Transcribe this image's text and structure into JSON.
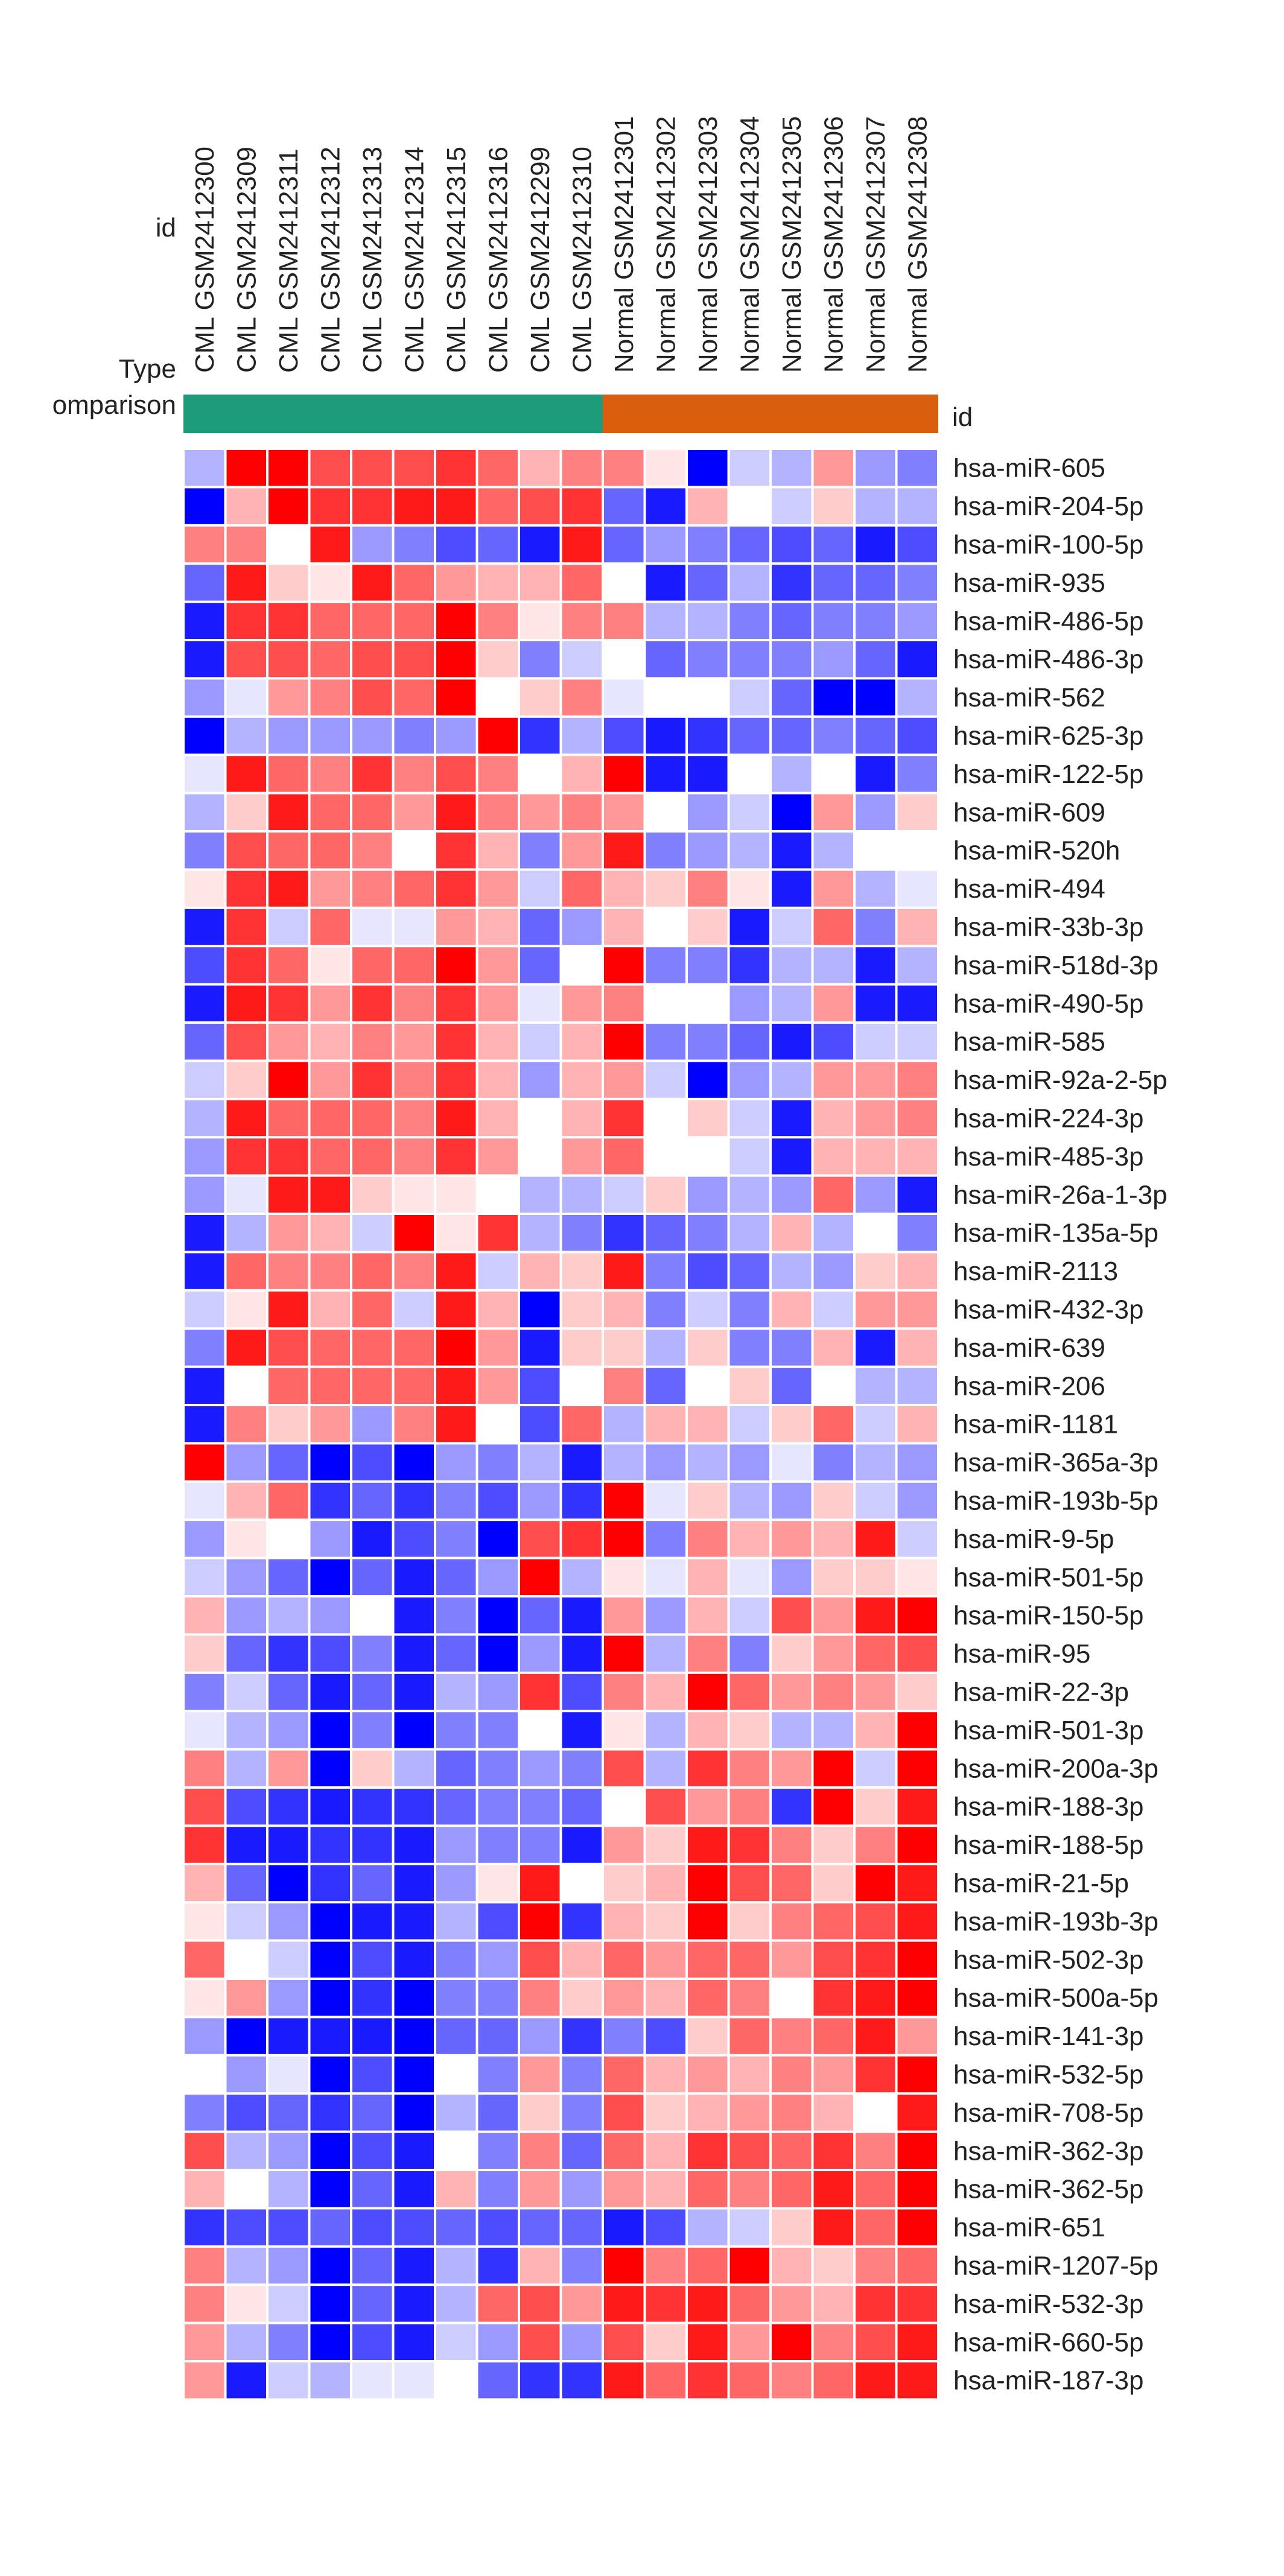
{
  "chart_data": {
    "type": "heatmap",
    "header_labels": {
      "id_row": "id",
      "type_row": "Type",
      "comparison_row": "omparison",
      "row_id_header": "id"
    },
    "columns": [
      {
        "id": "GSM2412300",
        "type": "CML"
      },
      {
        "id": "GSM2412309",
        "type": "CML"
      },
      {
        "id": "GSM2412311",
        "type": "CML"
      },
      {
        "id": "GSM2412312",
        "type": "CML"
      },
      {
        "id": "GSM2412313",
        "type": "CML"
      },
      {
        "id": "GSM2412314",
        "type": "CML"
      },
      {
        "id": "GSM2412315",
        "type": "CML"
      },
      {
        "id": "GSM2412316",
        "type": "CML"
      },
      {
        "id": "GSM2412299",
        "type": "CML"
      },
      {
        "id": "GSM2412310",
        "type": "CML"
      },
      {
        "id": "GSM2412301",
        "type": "Normal"
      },
      {
        "id": "GSM2412302",
        "type": "Normal"
      },
      {
        "id": "GSM2412303",
        "type": "Normal"
      },
      {
        "id": "GSM2412304",
        "type": "Normal"
      },
      {
        "id": "GSM2412305",
        "type": "Normal"
      },
      {
        "id": "GSM2412306",
        "type": "Normal"
      },
      {
        "id": "GSM2412307",
        "type": "Normal"
      },
      {
        "id": "GSM2412308",
        "type": "Normal"
      }
    ],
    "groups": [
      {
        "name": "CML",
        "color": "#1e9c79",
        "count": 10
      },
      {
        "name": "Normal",
        "color": "#d95f0e",
        "count": 8
      }
    ],
    "color_scale": {
      "low": "#0000ff",
      "mid": "#ffffff",
      "high": "#ff0000",
      "range": [
        -1,
        1
      ]
    },
    "rows": [
      {
        "id": "hsa-miR-605",
        "values": [
          -0.3,
          1.0,
          1.0,
          0.7,
          0.7,
          0.7,
          0.8,
          0.6,
          0.3,
          0.5,
          0.5,
          0.1,
          -1.0,
          -0.2,
          -0.3,
          0.4,
          -0.4,
          -0.5
        ]
      },
      {
        "id": "hsa-miR-204-5p",
        "values": [
          -1.0,
          0.3,
          1.0,
          0.8,
          0.8,
          0.9,
          0.9,
          0.6,
          0.7,
          0.8,
          -0.6,
          -0.9,
          0.3,
          0.0,
          -0.2,
          0.2,
          -0.3,
          -0.3
        ]
      },
      {
        "id": "hsa-miR-100-5p",
        "values": [
          0.5,
          0.5,
          0.0,
          0.9,
          -0.4,
          -0.5,
          -0.7,
          -0.6,
          -0.9,
          0.9,
          -0.6,
          -0.4,
          -0.5,
          -0.6,
          -0.7,
          -0.6,
          -0.9,
          -0.7
        ]
      },
      {
        "id": "hsa-miR-935",
        "values": [
          -0.6,
          0.9,
          0.2,
          0.1,
          0.9,
          0.6,
          0.4,
          0.3,
          0.3,
          0.6,
          0.0,
          -0.9,
          -0.6,
          -0.3,
          -0.8,
          -0.6,
          -0.6,
          -0.5
        ]
      },
      {
        "id": "hsa-miR-486-5p",
        "values": [
          -0.9,
          0.8,
          0.8,
          0.6,
          0.6,
          0.6,
          1.0,
          0.5,
          0.1,
          0.5,
          0.5,
          -0.3,
          -0.3,
          -0.5,
          -0.6,
          -0.5,
          -0.5,
          -0.4
        ]
      },
      {
        "id": "hsa-miR-486-3p",
        "values": [
          -0.9,
          0.7,
          0.7,
          0.6,
          0.7,
          0.7,
          1.0,
          0.2,
          -0.5,
          -0.2,
          0.0,
          -0.6,
          -0.5,
          -0.5,
          -0.5,
          -0.4,
          -0.6,
          -0.9
        ]
      },
      {
        "id": "hsa-miR-562",
        "values": [
          -0.4,
          -0.1,
          0.4,
          0.5,
          0.7,
          0.6,
          1.0,
          0.0,
          0.2,
          0.5,
          -0.1,
          0.0,
          0.0,
          -0.2,
          -0.6,
          -1.0,
          -1.0,
          -0.3
        ]
      },
      {
        "id": "hsa-miR-625-3p",
        "values": [
          -1.0,
          -0.3,
          -0.4,
          -0.4,
          -0.4,
          -0.5,
          -0.4,
          1.0,
          -0.8,
          -0.3,
          -0.7,
          -0.9,
          -0.8,
          -0.6,
          -0.6,
          -0.5,
          -0.6,
          -0.7
        ]
      },
      {
        "id": "hsa-miR-122-5p",
        "values": [
          -0.1,
          0.9,
          0.6,
          0.5,
          0.8,
          0.5,
          0.7,
          0.5,
          0.0,
          0.3,
          1.0,
          -0.9,
          -0.9,
          0.0,
          -0.3,
          0.0,
          -0.9,
          -0.5
        ]
      },
      {
        "id": "hsa-miR-609",
        "values": [
          -0.3,
          0.2,
          0.9,
          0.6,
          0.6,
          0.4,
          0.9,
          0.5,
          0.4,
          0.5,
          0.4,
          0.0,
          -0.4,
          -0.2,
          -1.0,
          0.4,
          -0.4,
          0.2
        ]
      },
      {
        "id": "hsa-miR-520h",
        "values": [
          -0.5,
          0.7,
          0.6,
          0.6,
          0.5,
          0.0,
          0.8,
          0.3,
          -0.5,
          0.4,
          0.9,
          -0.5,
          -0.4,
          -0.3,
          -0.9,
          -0.3,
          0.0,
          0.0
        ]
      },
      {
        "id": "hsa-miR-494",
        "values": [
          0.1,
          0.8,
          0.9,
          0.4,
          0.5,
          0.6,
          0.8,
          0.4,
          -0.2,
          0.6,
          0.3,
          0.2,
          0.5,
          0.1,
          -0.9,
          0.4,
          -0.3,
          -0.1
        ]
      },
      {
        "id": "hsa-miR-33b-3p",
        "values": [
          -0.9,
          0.8,
          -0.2,
          0.6,
          -0.1,
          -0.1,
          0.4,
          0.3,
          -0.6,
          -0.4,
          0.3,
          0.0,
          0.2,
          -0.9,
          -0.2,
          0.6,
          -0.5,
          0.3
        ]
      },
      {
        "id": "hsa-miR-518d-3p",
        "values": [
          -0.7,
          0.8,
          0.6,
          0.1,
          0.6,
          0.6,
          1.0,
          0.4,
          -0.6,
          0.0,
          1.0,
          -0.5,
          -0.5,
          -0.8,
          -0.3,
          -0.3,
          -0.9,
          -0.3
        ]
      },
      {
        "id": "hsa-miR-490-5p",
        "values": [
          -0.9,
          0.9,
          0.8,
          0.4,
          0.8,
          0.5,
          0.8,
          0.4,
          -0.1,
          0.4,
          0.5,
          0.0,
          0.0,
          -0.4,
          -0.3,
          0.4,
          -0.9,
          -0.9
        ]
      },
      {
        "id": "hsa-miR-585",
        "values": [
          -0.6,
          0.7,
          0.4,
          0.3,
          0.5,
          0.4,
          0.8,
          0.3,
          -0.2,
          0.3,
          1.0,
          -0.5,
          -0.5,
          -0.6,
          -0.9,
          -0.7,
          -0.2,
          -0.2
        ]
      },
      {
        "id": "hsa-miR-92a-2-5p",
        "values": [
          -0.2,
          0.2,
          1.0,
          0.4,
          0.8,
          0.5,
          0.8,
          0.3,
          -0.4,
          0.3,
          0.4,
          -0.2,
          -1.0,
          -0.4,
          -0.3,
          0.4,
          0.4,
          0.5
        ]
      },
      {
        "id": "hsa-miR-224-3p",
        "values": [
          -0.3,
          0.9,
          0.6,
          0.6,
          0.6,
          0.5,
          0.9,
          0.3,
          0.0,
          0.3,
          0.8,
          0.0,
          0.2,
          -0.2,
          -0.9,
          0.3,
          0.4,
          0.5
        ]
      },
      {
        "id": "hsa-miR-485-3p",
        "values": [
          -0.4,
          0.8,
          0.8,
          0.6,
          0.6,
          0.5,
          0.8,
          0.4,
          0.0,
          0.4,
          0.6,
          0.0,
          0.0,
          -0.2,
          -0.9,
          0.3,
          0.3,
          0.3
        ]
      },
      {
        "id": "hsa-miR-26a-1-3p",
        "values": [
          -0.4,
          -0.1,
          0.9,
          0.9,
          0.2,
          0.1,
          0.1,
          0.0,
          -0.3,
          -0.3,
          -0.2,
          0.2,
          -0.4,
          -0.3,
          -0.4,
          0.6,
          -0.4,
          -0.9
        ]
      },
      {
        "id": "hsa-miR-135a-5p",
        "values": [
          -0.9,
          -0.3,
          0.4,
          0.3,
          -0.2,
          1.0,
          0.1,
          0.8,
          -0.3,
          -0.5,
          -0.8,
          -0.6,
          -0.5,
          -0.3,
          0.3,
          -0.3,
          0.0,
          -0.5
        ]
      },
      {
        "id": "hsa-miR-2113",
        "values": [
          -0.9,
          0.6,
          0.5,
          0.5,
          0.6,
          0.5,
          0.9,
          -0.2,
          0.3,
          0.2,
          0.9,
          -0.5,
          -0.7,
          -0.6,
          -0.3,
          -0.4,
          0.2,
          0.3
        ]
      },
      {
        "id": "hsa-miR-432-3p",
        "values": [
          -0.2,
          0.1,
          0.9,
          0.3,
          0.6,
          -0.2,
          0.9,
          0.3,
          -1.0,
          0.2,
          0.3,
          -0.5,
          -0.2,
          -0.5,
          0.3,
          -0.2,
          0.4,
          0.4
        ]
      },
      {
        "id": "hsa-miR-639",
        "values": [
          -0.5,
          0.9,
          0.7,
          0.6,
          0.6,
          0.6,
          1.0,
          0.4,
          -0.9,
          0.2,
          0.2,
          -0.3,
          0.2,
          -0.5,
          -0.5,
          0.3,
          -0.9,
          0.3
        ]
      },
      {
        "id": "hsa-miR-206",
        "values": [
          -0.9,
          0.0,
          0.6,
          0.6,
          0.6,
          0.6,
          0.9,
          0.4,
          -0.7,
          0.0,
          0.5,
          -0.6,
          0.0,
          0.2,
          -0.6,
          0.0,
          -0.3,
          -0.3
        ]
      },
      {
        "id": "hsa-miR-1181",
        "values": [
          -0.9,
          0.5,
          0.2,
          0.4,
          -0.4,
          0.5,
          0.9,
          0.0,
          -0.7,
          0.6,
          -0.3,
          0.3,
          0.3,
          -0.2,
          0.2,
          0.6,
          -0.2,
          0.3
        ]
      },
      {
        "id": "hsa-miR-365a-3p",
        "values": [
          1.0,
          -0.4,
          -0.6,
          -1.0,
          -0.7,
          -1.0,
          -0.4,
          -0.5,
          -0.3,
          -0.9,
          -0.3,
          -0.4,
          -0.3,
          -0.4,
          -0.1,
          -0.5,
          -0.3,
          -0.4
        ]
      },
      {
        "id": "hsa-miR-193b-5p",
        "values": [
          -0.1,
          0.3,
          0.6,
          -0.8,
          -0.6,
          -0.8,
          -0.5,
          -0.7,
          -0.4,
          -0.8,
          1.0,
          -0.1,
          0.2,
          -0.3,
          -0.4,
          0.2,
          -0.2,
          -0.4
        ]
      },
      {
        "id": "hsa-miR-9-5p",
        "values": [
          -0.4,
          0.1,
          0.0,
          -0.4,
          -0.9,
          -0.7,
          -0.5,
          -1.0,
          0.7,
          0.8,
          1.0,
          -0.5,
          0.5,
          0.3,
          0.4,
          0.3,
          0.9,
          -0.2
        ]
      },
      {
        "id": "hsa-miR-501-5p",
        "values": [
          -0.2,
          -0.4,
          -0.6,
          -1.0,
          -0.6,
          -0.9,
          -0.6,
          -0.4,
          1.0,
          -0.3,
          0.1,
          -0.1,
          0.3,
          -0.1,
          -0.4,
          0.2,
          0.2,
          0.1
        ]
      },
      {
        "id": "hsa-miR-150-5p",
        "values": [
          0.3,
          -0.4,
          -0.3,
          -0.4,
          0.0,
          -0.9,
          -0.5,
          -1.0,
          -0.6,
          -0.9,
          0.4,
          -0.4,
          0.3,
          -0.2,
          0.7,
          0.4,
          0.9,
          1.0
        ]
      },
      {
        "id": "hsa-miR-95",
        "values": [
          0.2,
          -0.6,
          -0.8,
          -0.7,
          -0.5,
          -0.9,
          -0.6,
          -1.0,
          -0.4,
          -0.9,
          1.0,
          -0.3,
          0.5,
          -0.5,
          0.2,
          0.4,
          0.6,
          0.7
        ]
      },
      {
        "id": "hsa-miR-22-3p",
        "values": [
          -0.5,
          -0.2,
          -0.6,
          -0.9,
          -0.6,
          -0.9,
          -0.3,
          -0.4,
          0.8,
          -0.7,
          0.5,
          0.3,
          1.0,
          0.6,
          0.4,
          0.5,
          0.4,
          0.2
        ]
      },
      {
        "id": "hsa-miR-501-3p",
        "values": [
          -0.1,
          -0.3,
          -0.4,
          -1.0,
          -0.5,
          -1.0,
          -0.5,
          -0.5,
          0.0,
          -0.9,
          0.1,
          -0.3,
          0.3,
          0.2,
          -0.3,
          -0.3,
          0.3,
          1.0
        ]
      },
      {
        "id": "hsa-miR-200a-3p",
        "values": [
          0.5,
          -0.3,
          0.4,
          -1.0,
          0.2,
          -0.3,
          -0.6,
          -0.5,
          -0.4,
          -0.5,
          0.7,
          -0.3,
          0.8,
          0.5,
          0.4,
          1.0,
          -0.2,
          1.0
        ]
      },
      {
        "id": "hsa-miR-188-3p",
        "values": [
          0.7,
          -0.7,
          -0.8,
          -0.9,
          -0.8,
          -0.8,
          -0.6,
          -0.5,
          -0.5,
          -0.6,
          0.0,
          0.7,
          0.4,
          0.5,
          -0.8,
          1.0,
          0.2,
          0.9
        ]
      },
      {
        "id": "hsa-miR-188-5p",
        "values": [
          0.8,
          -0.9,
          -0.9,
          -0.8,
          -0.8,
          -0.9,
          -0.4,
          -0.5,
          -0.5,
          -0.9,
          0.4,
          0.2,
          0.9,
          0.8,
          0.5,
          0.2,
          0.5,
          1.0
        ]
      },
      {
        "id": "hsa-miR-21-5p",
        "values": [
          0.3,
          -0.6,
          -1.0,
          -0.8,
          -0.6,
          -0.9,
          -0.4,
          0.1,
          0.9,
          0.0,
          0.2,
          0.3,
          1.0,
          0.7,
          0.6,
          0.2,
          1.0,
          0.9
        ]
      },
      {
        "id": "hsa-miR-193b-3p",
        "values": [
          0.1,
          -0.2,
          -0.4,
          -1.0,
          -0.9,
          -0.9,
          -0.3,
          -0.7,
          1.0,
          -0.8,
          0.3,
          0.2,
          1.0,
          0.2,
          0.5,
          0.6,
          0.7,
          0.9
        ]
      },
      {
        "id": "hsa-miR-502-3p",
        "values": [
          0.6,
          0.0,
          -0.2,
          -1.0,
          -0.7,
          -0.9,
          -0.5,
          -0.4,
          0.7,
          0.3,
          0.6,
          0.4,
          0.6,
          0.6,
          0.4,
          0.7,
          0.8,
          1.0
        ]
      },
      {
        "id": "hsa-miR-500a-5p",
        "values": [
          0.1,
          0.4,
          -0.4,
          -1.0,
          -0.8,
          -1.0,
          -0.5,
          -0.5,
          0.5,
          0.2,
          0.4,
          0.3,
          0.6,
          0.5,
          0.0,
          0.8,
          0.9,
          1.0
        ]
      },
      {
        "id": "hsa-miR-141-3p",
        "values": [
          -0.4,
          -1.0,
          -0.9,
          -0.9,
          -0.9,
          -1.0,
          -0.6,
          -0.6,
          -0.4,
          -0.8,
          -0.5,
          -0.7,
          0.2,
          0.6,
          0.5,
          0.6,
          0.9,
          0.4
        ]
      },
      {
        "id": "hsa-miR-532-5p",
        "values": [
          0.0,
          -0.4,
          -0.1,
          -1.0,
          -0.7,
          -1.0,
          0.0,
          -0.5,
          0.4,
          -0.5,
          0.6,
          0.3,
          0.4,
          0.3,
          0.5,
          0.4,
          0.8,
          1.0
        ]
      },
      {
        "id": "hsa-miR-708-5p",
        "values": [
          -0.5,
          -0.7,
          -0.6,
          -0.8,
          -0.6,
          -1.0,
          -0.3,
          -0.6,
          0.2,
          -0.5,
          0.7,
          0.2,
          0.3,
          0.4,
          0.5,
          0.3,
          0.0,
          0.9
        ]
      },
      {
        "id": "hsa-miR-362-3p",
        "values": [
          0.7,
          -0.3,
          -0.4,
          -1.0,
          -0.7,
          -0.9,
          0.0,
          -0.5,
          0.5,
          -0.6,
          0.6,
          0.3,
          0.8,
          0.7,
          0.6,
          0.8,
          0.5,
          1.0
        ]
      },
      {
        "id": "hsa-miR-362-5p",
        "values": [
          0.3,
          0.0,
          -0.3,
          -1.0,
          -0.6,
          -0.9,
          0.3,
          -0.5,
          0.4,
          -0.4,
          0.4,
          0.3,
          0.6,
          0.5,
          0.6,
          0.9,
          0.6,
          1.0
        ]
      },
      {
        "id": "hsa-miR-651",
        "values": [
          -0.8,
          -0.7,
          -0.7,
          -0.6,
          -0.7,
          -0.7,
          -0.6,
          -0.7,
          -0.6,
          -0.6,
          -0.9,
          -0.7,
          -0.3,
          -0.2,
          0.2,
          0.9,
          0.6,
          1.0
        ]
      },
      {
        "id": "hsa-miR-1207-5p",
        "values": [
          0.5,
          -0.3,
          -0.4,
          -1.0,
          -0.6,
          -0.9,
          -0.3,
          -0.8,
          0.3,
          -0.5,
          1.0,
          0.5,
          0.6,
          1.0,
          0.3,
          0.2,
          0.5,
          0.6
        ]
      },
      {
        "id": "hsa-miR-532-3p",
        "values": [
          0.5,
          0.1,
          -0.2,
          -1.0,
          -0.6,
          -0.9,
          -0.3,
          0.6,
          0.7,
          0.4,
          0.9,
          0.8,
          0.9,
          0.6,
          0.4,
          0.3,
          0.8,
          0.8
        ]
      },
      {
        "id": "hsa-miR-660-5p",
        "values": [
          0.4,
          -0.3,
          -0.5,
          -1.0,
          -0.7,
          -0.9,
          -0.2,
          -0.4,
          0.7,
          -0.4,
          0.7,
          0.2,
          0.9,
          0.4,
          1.0,
          0.5,
          0.7,
          0.9
        ]
      },
      {
        "id": "hsa-miR-187-3p",
        "values": [
          0.4,
          -0.9,
          -0.2,
          -0.3,
          -0.1,
          -0.1,
          0.0,
          -0.6,
          -0.8,
          -0.8,
          0.9,
          0.6,
          0.8,
          0.6,
          0.5,
          0.6,
          0.9,
          0.9
        ]
      }
    ]
  }
}
